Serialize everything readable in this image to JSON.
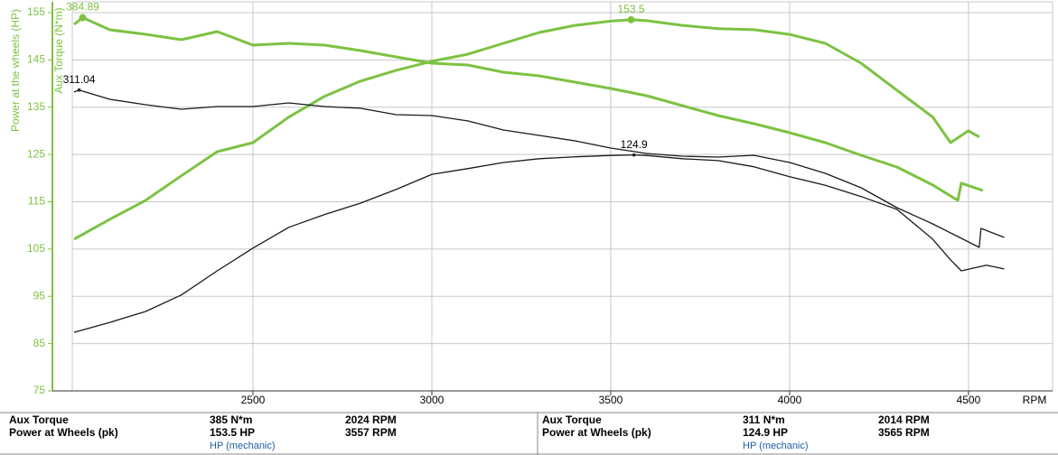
{
  "chart_data": {
    "type": "line",
    "ylabel": "Power at the wheels (HP)",
    "y2label": "Aux Torque (N*m)",
    "xlabel": "RPM",
    "xlim": [
      1995,
      4735
    ],
    "xticks": [
      2500,
      3000,
      3500,
      4000,
      4500
    ],
    "ylim": [
      75,
      155
    ],
    "yticks": [
      75,
      85,
      95,
      105,
      115,
      125,
      135,
      145,
      155
    ],
    "y2lim": [
      4,
      390
    ],
    "grid": true,
    "show_peak": true,
    "axis_color": "#7cc242",
    "series": [
      {
        "color": "#7cc242",
        "axis": "y",
        "x": [
          2000,
          2100,
          2200,
          2300,
          2400,
          2500,
          2600,
          2700,
          2800,
          2900,
          3000,
          3100,
          3200,
          3300,
          3400,
          3500,
          3557,
          3600,
          3700,
          3800,
          3900,
          4000,
          4100,
          4200,
          4300,
          4400,
          4450,
          4500,
          4530
        ],
        "values": [
          107.1,
          111.3,
          115.3,
          120.5,
          125.6,
          127.5,
          132.9,
          137.3,
          140.5,
          142.8,
          144.7,
          146.2,
          148.5,
          150.8,
          152.3,
          153.2,
          153.5,
          153.3,
          152.3,
          151.6,
          151.4,
          150.4,
          148.5,
          144.3,
          138.6,
          132.9,
          127.5,
          130,
          128.7
        ]
      },
      {
        "color": "#7cc242",
        "axis": "y2",
        "x": [
          2000,
          2024,
          2100,
          2200,
          2300,
          2400,
          2500,
          2600,
          2700,
          2800,
          2900,
          3000,
          3100,
          3200,
          3300,
          3400,
          3500,
          3600,
          3700,
          3800,
          3900,
          4000,
          4100,
          4200,
          4300,
          4400,
          4470,
          4480,
          4540
        ],
        "values": [
          378,
          384.89,
          372.5,
          367.9,
          362.4,
          370.7,
          356.8,
          358.7,
          356.8,
          351.3,
          344.9,
          338.4,
          336.6,
          329.2,
          325.5,
          319.1,
          312.6,
          305.2,
          295.1,
          285,
          276.7,
          267.5,
          257.3,
          244.4,
          232.5,
          214.1,
          198.4,
          216,
          208.5
        ]
      },
      {
        "color": "#1a1a1a",
        "axis": "y",
        "x": [
          2000,
          2100,
          2200,
          2300,
          2400,
          2500,
          2600,
          2700,
          2800,
          2900,
          3000,
          3100,
          3200,
          3300,
          3400,
          3500,
          3565,
          3600,
          3700,
          3800,
          3900,
          4000,
          4100,
          4200,
          4300,
          4400,
          4450,
          4480,
          4550,
          4600
        ],
        "values": [
          87.4,
          89.5,
          91.8,
          95.3,
          100.4,
          105.2,
          109.6,
          112.3,
          114.7,
          117.6,
          120.8,
          122,
          123.3,
          124.1,
          124.5,
          124.8,
          124.9,
          124.8,
          124.1,
          123.7,
          122.4,
          120.3,
          118.5,
          116.1,
          113.4,
          107.1,
          102.7,
          100.4,
          101.6,
          100.8
        ]
      },
      {
        "color": "#1a1a1a",
        "axis": "y2",
        "x": [
          2000,
          2014,
          2100,
          2200,
          2300,
          2400,
          2500,
          2600,
          2700,
          2800,
          2900,
          3000,
          3100,
          3200,
          3300,
          3400,
          3500,
          3600,
          3700,
          3800,
          3900,
          4000,
          4100,
          4200,
          4300,
          4400,
          4470,
          4530,
          4535,
          4600
        ],
        "values": [
          308.9,
          311.04,
          301.6,
          296,
          291.4,
          294.2,
          294.2,
          297.9,
          294.2,
          292.4,
          285.9,
          285,
          279.5,
          270.2,
          264.7,
          259.2,
          251.8,
          246.3,
          243.5,
          242.6,
          244.4,
          237.1,
          226,
          211.3,
          191,
          174.4,
          161.5,
          150.5,
          169.8,
          160.6
        ]
      }
    ]
  },
  "summary_panels": [
    {
      "rows": [
        [
          "Aux Torque",
          "385 N*m",
          "2024 RPM"
        ],
        [
          "Power at Wheels (pk)",
          "153.5 HP",
          "3557 RPM"
        ]
      ],
      "note": "HP (mechanic)"
    },
    {
      "rows": [
        [
          "Aux Torque",
          "311 N*m",
          "2014 RPM"
        ],
        [
          "Power at Wheels (pk)",
          "124.9 HP",
          "3565 RPM"
        ]
      ],
      "note": "HP (mechanic)"
    }
  ]
}
